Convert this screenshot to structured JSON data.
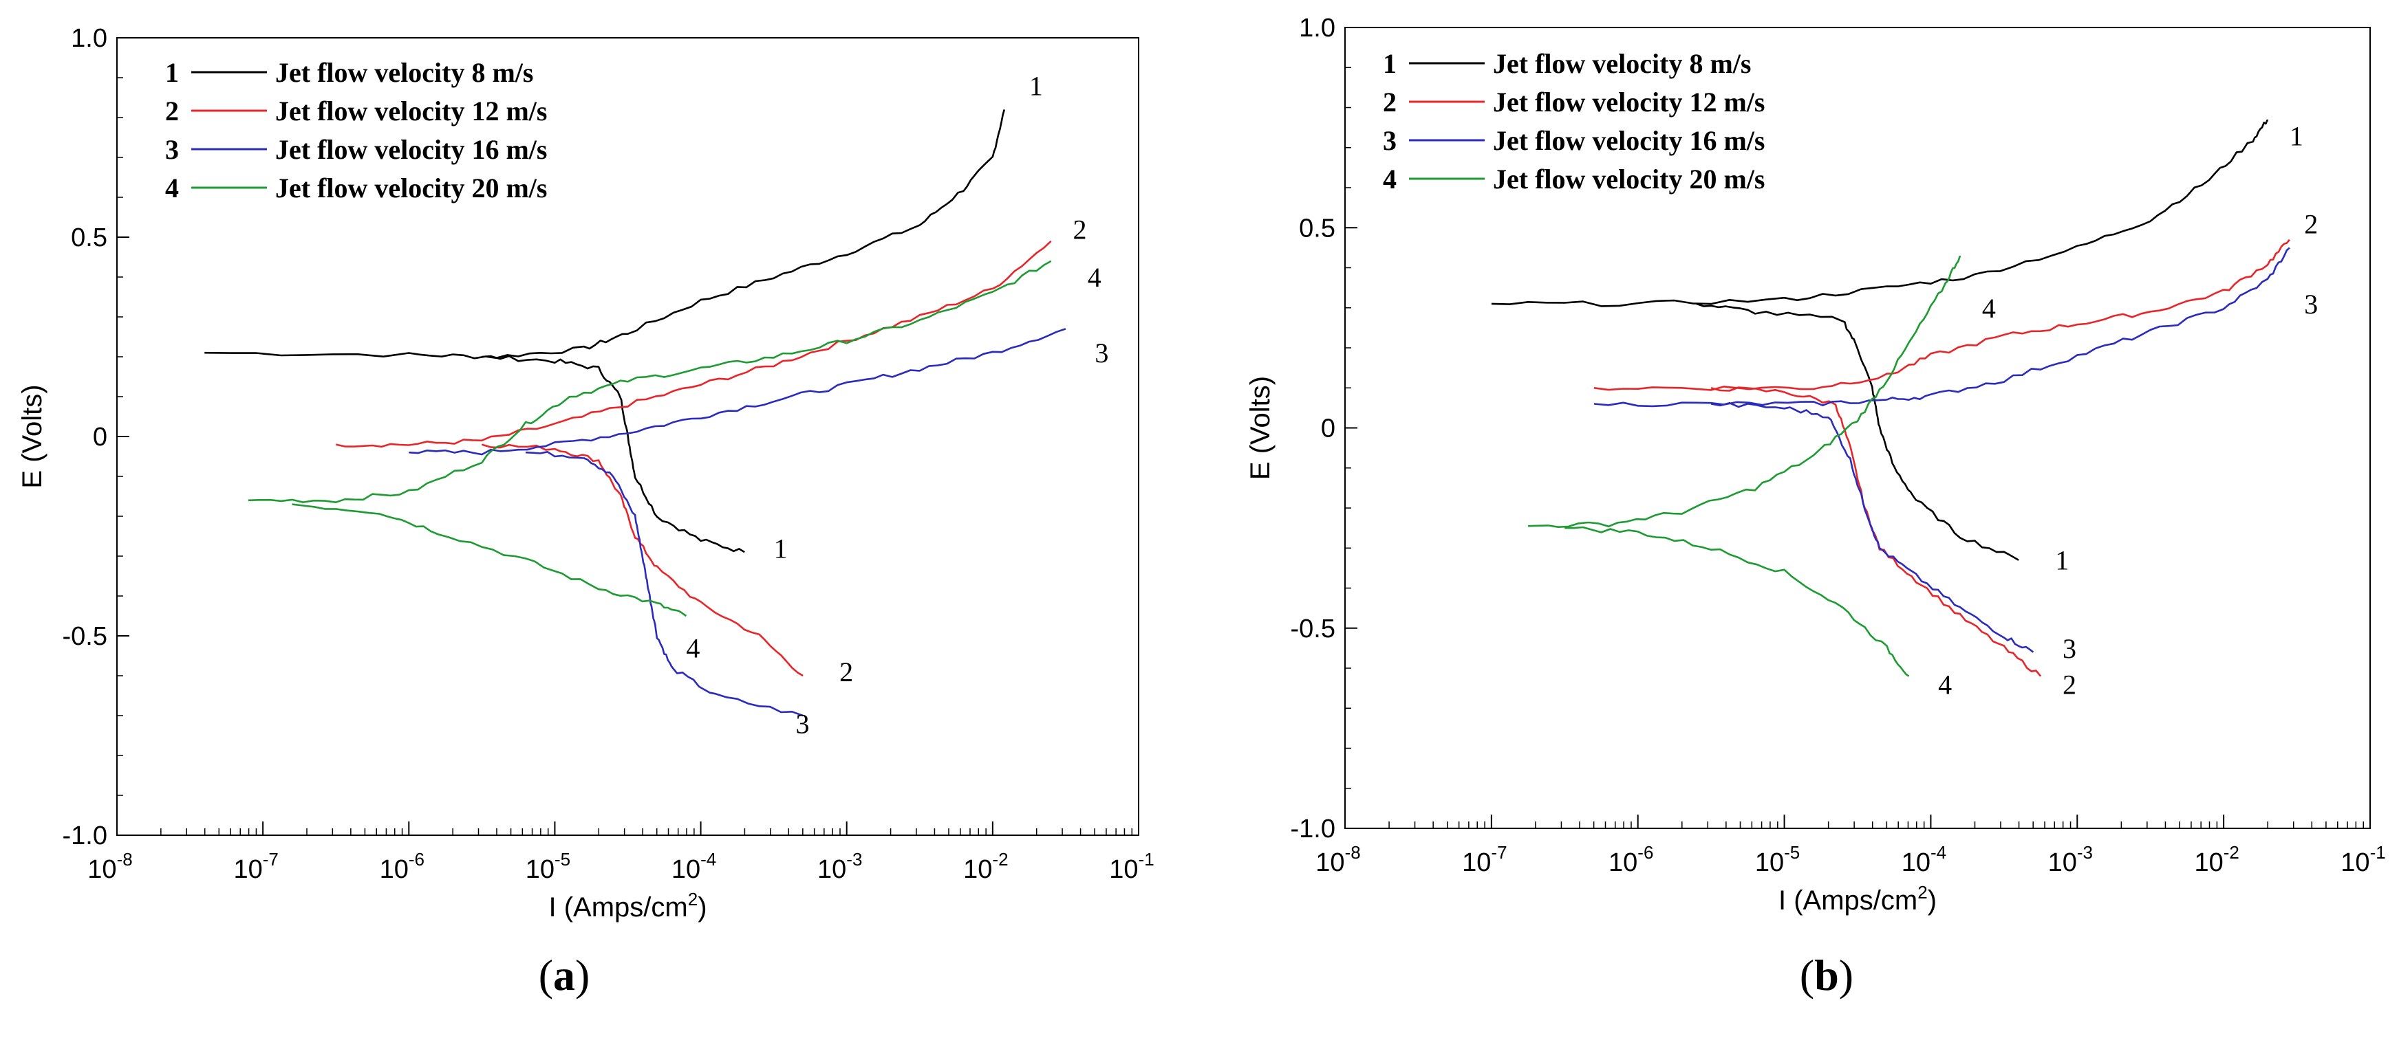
{
  "chart_data": [
    {
      "type": "line",
      "panel_label": "a",
      "xlabel": "I (Amps/cm",
      "xlabel_sup": "2",
      "xlabel_end": ")",
      "ylabel": "E (Volts)",
      "xscale": "log",
      "xlim": [
        -8,
        -1
      ],
      "ylim": [
        -1.0,
        1.0
      ],
      "x_ticks": [
        -8,
        -7,
        -6,
        -5,
        -4,
        -3,
        -2,
        -1
      ],
      "x_tick_base": "10",
      "y_ticks": [
        "1.0",
        "0.5",
        "0",
        "-0.5",
        "-1.0"
      ],
      "legend": [
        {
          "num": "1",
          "name": "Jet flow velocity 8 m/s",
          "color": "#000000"
        },
        {
          "num": "2",
          "name": "Jet flow velocity 12 m/s",
          "color": "#e8262a"
        },
        {
          "num": "3",
          "name": "Jet flow velocity 16 m/s",
          "color": "#2b2bbf"
        },
        {
          "num": "4",
          "name": "Jet flow velocity 20 m/s",
          "color": "#1e9b32"
        }
      ],
      "series": [
        {
          "name": "1",
          "color": "#000000",
          "anodic": [
            [
              -7.4,
              0.21
            ],
            [
              -6,
              0.205
            ],
            [
              -5.4,
              0.2
            ],
            [
              -4.8,
              0.22
            ],
            [
              -4.5,
              0.26
            ],
            [
              -4,
              0.34
            ],
            [
              -3.5,
              0.4
            ],
            [
              -3,
              0.46
            ],
            [
              -2.5,
              0.53
            ],
            [
              -2.2,
              0.62
            ],
            [
              -2,
              0.7
            ],
            [
              -1.92,
              0.82
            ]
          ],
          "cathodic": [
            [
              -5.5,
              0.2
            ],
            [
              -5,
              0.19
            ],
            [
              -4.7,
              0.17
            ],
            [
              -4.55,
              0.1
            ],
            [
              -4.5,
              0
            ],
            [
              -4.45,
              -0.1
            ],
            [
              -4.3,
              -0.2
            ],
            [
              -4.0,
              -0.26
            ],
            [
              -3.7,
              -0.29
            ]
          ],
          "labels": [
            {
              "text": "1",
              "x": -1.75,
              "y": 0.88
            },
            {
              "text": "1",
              "x": -3.5,
              "y": -0.28
            }
          ]
        },
        {
          "name": "2",
          "color": "#e8262a",
          "anodic": [
            [
              -6.5,
              -0.02
            ],
            [
              -6,
              -0.02
            ],
            [
              -5.5,
              -0.01
            ],
            [
              -5,
              0.03
            ],
            [
              -4.5,
              0.08
            ],
            [
              -4,
              0.13
            ],
            [
              -3.5,
              0.18
            ],
            [
              -3,
              0.24
            ],
            [
              -2.5,
              0.3
            ],
            [
              -2,
              0.37
            ],
            [
              -1.6,
              0.49
            ]
          ],
          "cathodic": [
            [
              -5.5,
              -0.02
            ],
            [
              -5,
              -0.03
            ],
            [
              -4.7,
              -0.06
            ],
            [
              -4.55,
              -0.15
            ],
            [
              -4.45,
              -0.25
            ],
            [
              -4.3,
              -0.33
            ],
            [
              -4,
              -0.42
            ],
            [
              -3.6,
              -0.5
            ],
            [
              -3.3,
              -0.6
            ]
          ],
          "labels": [
            {
              "text": "2",
              "x": -1.45,
              "y": 0.52
            },
            {
              "text": "2",
              "x": -3.05,
              "y": -0.59
            }
          ]
        },
        {
          "name": "3",
          "color": "#2b2bbf",
          "anodic": [
            [
              -6,
              -0.04
            ],
            [
              -5.5,
              -0.04
            ],
            [
              -5,
              -0.02
            ],
            [
              -4.5,
              0.01
            ],
            [
              -4,
              0.05
            ],
            [
              -3.5,
              0.09
            ],
            [
              -3,
              0.13
            ],
            [
              -2.5,
              0.17
            ],
            [
              -2,
              0.21
            ],
            [
              -1.5,
              0.27
            ]
          ],
          "cathodic": [
            [
              -5.2,
              -0.04
            ],
            [
              -4.8,
              -0.05
            ],
            [
              -4.6,
              -0.1
            ],
            [
              -4.45,
              -0.2
            ],
            [
              -4.4,
              -0.3
            ],
            [
              -4.35,
              -0.4
            ],
            [
              -4.3,
              -0.5
            ],
            [
              -4.2,
              -0.58
            ],
            [
              -3.9,
              -0.65
            ],
            [
              -3.3,
              -0.7
            ]
          ],
          "labels": [
            {
              "text": "3",
              "x": -1.3,
              "y": 0.21
            },
            {
              "text": "3",
              "x": -3.35,
              "y": -0.72
            }
          ]
        },
        {
          "name": "4",
          "color": "#1e9b32",
          "anodic": [
            [
              -7.1,
              -0.16
            ],
            [
              -6.5,
              -0.16
            ],
            [
              -6,
              -0.14
            ],
            [
              -5.5,
              -0.06
            ],
            [
              -5.2,
              0.03
            ],
            [
              -4.9,
              0.1
            ],
            [
              -4.5,
              0.14
            ],
            [
              -4,
              0.17
            ],
            [
              -3.5,
              0.2
            ],
            [
              -3,
              0.24
            ],
            [
              -2.5,
              0.29
            ],
            [
              -2,
              0.36
            ],
            [
              -1.6,
              0.44
            ]
          ],
          "cathodic": [
            [
              -6.8,
              -0.17
            ],
            [
              -6.2,
              -0.19
            ],
            [
              -5.8,
              -0.24
            ],
            [
              -5.2,
              -0.31
            ],
            [
              -4.7,
              -0.38
            ],
            [
              -4.3,
              -0.42
            ],
            [
              -4.1,
              -0.45
            ]
          ],
          "labels": [
            {
              "text": "4",
              "x": -1.35,
              "y": 0.4
            },
            {
              "text": "4",
              "x": -4.1,
              "y": -0.53
            }
          ]
        }
      ]
    },
    {
      "type": "line",
      "panel_label": "b",
      "xlabel": "I (Amps/cm",
      "xlabel_sup": "2",
      "xlabel_end": ")",
      "ylabel": "E (Volts)",
      "xscale": "log",
      "xlim": [
        -8,
        -1
      ],
      "ylim": [
        -1.0,
        1.0
      ],
      "x_ticks": [
        -8,
        -7,
        -6,
        -5,
        -4,
        -3,
        -2,
        -1
      ],
      "x_tick_base": "10",
      "y_ticks": [
        "1.0",
        "0.5",
        "0",
        "-0.5",
        "-1.0"
      ],
      "legend": [
        {
          "num": "1",
          "name": "Jet flow velocity 8 m/s",
          "color": "#000000"
        },
        {
          "num": "2",
          "name": "Jet flow velocity 12 m/s",
          "color": "#e8262a"
        },
        {
          "num": "3",
          "name": "Jet flow velocity 16 m/s",
          "color": "#2b2bbf"
        },
        {
          "num": "4",
          "name": "Jet flow velocity 20 m/s",
          "color": "#1e9b32"
        }
      ],
      "series": [
        {
          "name": "1",
          "color": "#000000",
          "anodic": [
            [
              -7,
              0.31
            ],
            [
              -6,
              0.31
            ],
            [
              -5,
              0.32
            ],
            [
              -4.3,
              0.35
            ],
            [
              -3.7,
              0.38
            ],
            [
              -3,
              0.45
            ],
            [
              -2.5,
              0.52
            ],
            [
              -2.1,
              0.62
            ],
            [
              -1.8,
              0.72
            ],
            [
              -1.7,
              0.77
            ]
          ],
          "cathodic": [
            [
              -5.6,
              0.31
            ],
            [
              -5.2,
              0.29
            ],
            [
              -4.6,
              0.27
            ],
            [
              -4.5,
              0.2
            ],
            [
              -4.4,
              0.1
            ],
            [
              -4.35,
              0
            ],
            [
              -4.25,
              -0.1
            ],
            [
              -4.1,
              -0.18
            ],
            [
              -3.8,
              -0.27
            ],
            [
              -3.4,
              -0.33
            ]
          ],
          "labels": [
            {
              "text": "1",
              "x": -1.55,
              "y": 0.73
            },
            {
              "text": "1",
              "x": -3.15,
              "y": -0.33
            }
          ]
        },
        {
          "name": "2",
          "color": "#e8262a",
          "anodic": [
            [
              -6.3,
              0.1
            ],
            [
              -5.5,
              0.1
            ],
            [
              -4.8,
              0.1
            ],
            [
              -4.3,
              0.13
            ],
            [
              -4,
              0.18
            ],
            [
              -3.5,
              0.23
            ],
            [
              -3,
              0.26
            ],
            [
              -2.5,
              0.29
            ],
            [
              -2,
              0.34
            ],
            [
              -1.7,
              0.41
            ],
            [
              -1.55,
              0.47
            ]
          ],
          "cathodic": [
            [
              -5.5,
              0.1
            ],
            [
              -5,
              0.09
            ],
            [
              -4.65,
              0.06
            ],
            [
              -4.55,
              -0.05
            ],
            [
              -4.45,
              -0.2
            ],
            [
              -4.35,
              -0.3
            ],
            [
              -4.1,
              -0.38
            ],
            [
              -3.8,
              -0.47
            ],
            [
              -3.5,
              -0.55
            ],
            [
              -3.25,
              -0.62
            ]
          ],
          "labels": [
            {
              "text": "2",
              "x": -1.45,
              "y": 0.51
            },
            {
              "text": "2",
              "x": -3.1,
              "y": -0.64
            }
          ]
        },
        {
          "name": "3",
          "color": "#2b2bbf",
          "anodic": [
            [
              -6.3,
              0.06
            ],
            [
              -5.5,
              0.06
            ],
            [
              -4.8,
              0.06
            ],
            [
              -4.3,
              0.07
            ],
            [
              -4,
              0.08
            ],
            [
              -3.5,
              0.12
            ],
            [
              -3,
              0.18
            ],
            [
              -2.5,
              0.24
            ],
            [
              -2,
              0.3
            ],
            [
              -1.7,
              0.37
            ],
            [
              -1.55,
              0.45
            ]
          ],
          "cathodic": [
            [
              -5.5,
              0.06
            ],
            [
              -5,
              0.05
            ],
            [
              -4.7,
              0.03
            ],
            [
              -4.55,
              -0.08
            ],
            [
              -4.45,
              -0.2
            ],
            [
              -4.35,
              -0.3
            ],
            [
              -4.1,
              -0.37
            ],
            [
              -3.8,
              -0.45
            ],
            [
              -3.5,
              -0.52
            ],
            [
              -3.3,
              -0.56
            ]
          ],
          "labels": [
            {
              "text": "3",
              "x": -1.45,
              "y": 0.31
            },
            {
              "text": "3",
              "x": -3.1,
              "y": -0.55
            }
          ]
        },
        {
          "name": "4",
          "color": "#1e9b32",
          "anodic": [
            [
              -6.75,
              -0.245
            ],
            [
              -6.2,
              -0.24
            ],
            [
              -5.7,
              -0.21
            ],
            [
              -5.2,
              -0.15
            ],
            [
              -4.8,
              -0.07
            ],
            [
              -4.5,
              0.02
            ],
            [
              -4.3,
              0.12
            ],
            [
              -4.1,
              0.24
            ],
            [
              -3.9,
              0.36
            ],
            [
              -3.8,
              0.43
            ]
          ],
          "cathodic": [
            [
              -6.5,
              -0.25
            ],
            [
              -6,
              -0.26
            ],
            [
              -5.5,
              -0.3
            ],
            [
              -5,
              -0.36
            ],
            [
              -4.6,
              -0.45
            ],
            [
              -4.3,
              -0.55
            ],
            [
              -4.15,
              -0.62
            ]
          ],
          "labels": [
            {
              "text": "4",
              "x": -3.65,
              "y": 0.3
            },
            {
              "text": "4",
              "x": -3.95,
              "y": -0.64
            }
          ]
        }
      ]
    }
  ]
}
